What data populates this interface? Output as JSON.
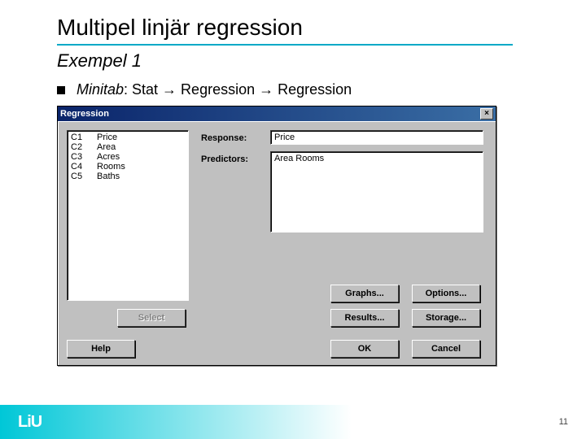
{
  "slide": {
    "title": "Multipel linjär regression",
    "subtitle": "Exempel 1",
    "bullet_prefix_italic": "Minitab",
    "bullet_rest": ": Stat → Regression → Regression",
    "accent_color": "#00a9c7"
  },
  "dialog": {
    "title": "Regression",
    "close_glyph": "×",
    "labels": {
      "response": "Response:",
      "predictors": "Predictors:"
    },
    "fields": {
      "response_value": "Price",
      "predictors_value": "Area Rooms"
    },
    "listbox": [
      {
        "col": "C1",
        "name": "Price"
      },
      {
        "col": "C2",
        "name": "Area"
      },
      {
        "col": "C3",
        "name": "Acres"
      },
      {
        "col": "C4",
        "name": "Rooms"
      },
      {
        "col": "C5",
        "name": "Baths"
      }
    ],
    "buttons": {
      "graphs": "Graphs...",
      "options": "Options...",
      "results": "Results...",
      "storage": "Storage...",
      "select": "Select",
      "help": "Help",
      "ok": "OK",
      "cancel": "Cancel"
    },
    "colors": {
      "face": "#c0c0c0",
      "title_gradient_from": "#0a246a",
      "title_gradient_to": "#3a6ea5"
    }
  },
  "footer": {
    "logo_text": "LiU",
    "page_number": "11",
    "gradient_from": "#00c7d7",
    "gradient_to": "#ffffff"
  }
}
